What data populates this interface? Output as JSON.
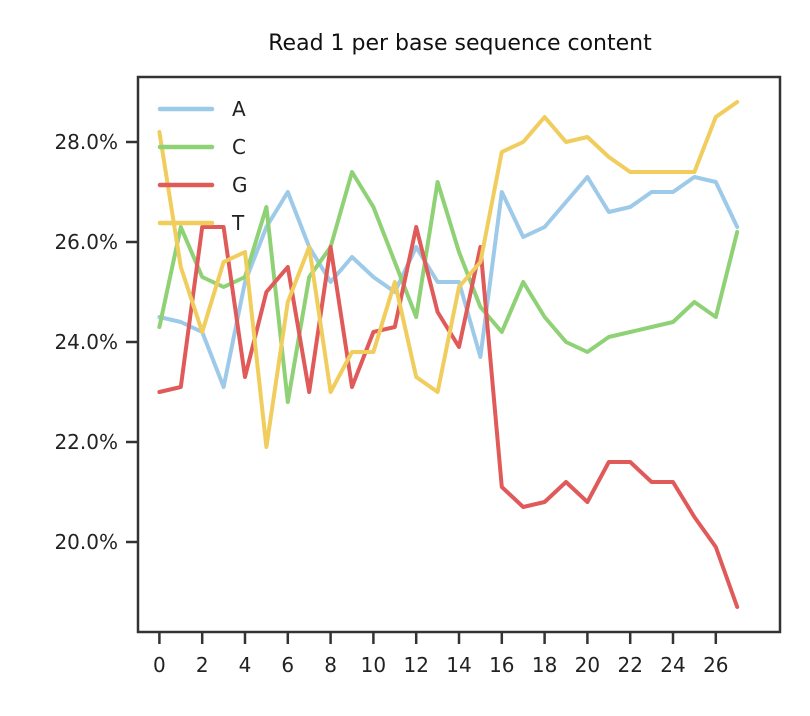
{
  "chart_data": {
    "type": "line",
    "title": "Read 1 per base sequence content",
    "xlabel": "",
    "ylabel": "",
    "x": [
      0,
      1,
      2,
      3,
      4,
      5,
      6,
      7,
      8,
      9,
      10,
      11,
      12,
      13,
      14,
      15,
      16,
      17,
      18,
      19,
      20,
      21,
      22,
      23,
      24,
      25,
      26,
      27
    ],
    "xlim": [
      -1,
      29
    ],
    "ylim": [
      18.2,
      29.3
    ],
    "xticks": [
      0,
      2,
      4,
      6,
      8,
      10,
      12,
      14,
      16,
      18,
      20,
      22,
      24,
      26
    ],
    "xtick_labels": [
      "0",
      "2",
      "4",
      "6",
      "8",
      "10",
      "12",
      "14",
      "16",
      "18",
      "20",
      "22",
      "24",
      "26"
    ],
    "yticks": [
      20,
      22,
      24,
      26,
      28
    ],
    "ytick_labels": [
      "20.0%",
      "22.0%",
      "24.0%",
      "26.0%",
      "28.0%"
    ],
    "grid": false,
    "legend_position": "top-left",
    "series": [
      {
        "name": "A",
        "color": "#9ecae9",
        "values": [
          24.5,
          24.4,
          24.2,
          23.1,
          25.2,
          26.3,
          27.0,
          25.9,
          25.2,
          25.7,
          25.3,
          25.0,
          25.9,
          25.2,
          25.2,
          23.7,
          27.0,
          26.1,
          26.3,
          26.8,
          27.3,
          26.6,
          26.7,
          27.0,
          27.0,
          27.3,
          27.2,
          26.3
        ]
      },
      {
        "name": "C",
        "color": "#8fd175",
        "values": [
          24.3,
          26.3,
          25.3,
          25.1,
          25.3,
          26.7,
          22.8,
          25.3,
          25.9,
          27.4,
          26.7,
          25.6,
          24.5,
          27.2,
          25.8,
          24.7,
          24.2,
          25.2,
          24.5,
          24.0,
          23.8,
          24.1,
          24.2,
          24.3,
          24.4,
          24.8,
          24.5,
          26.2
        ]
      },
      {
        "name": "G",
        "color": "#e05a5a",
        "values": [
          23.0,
          23.1,
          26.3,
          26.3,
          23.3,
          25.0,
          25.5,
          23.0,
          25.9,
          23.1,
          24.2,
          24.3,
          26.3,
          24.6,
          23.9,
          25.9,
          21.1,
          20.7,
          20.8,
          21.2,
          20.8,
          21.6,
          21.6,
          21.2,
          21.2,
          20.5,
          19.9,
          18.7
        ]
      },
      {
        "name": "T",
        "color": "#f0cd5d",
        "values": [
          28.2,
          25.5,
          24.2,
          25.6,
          25.8,
          21.9,
          24.8,
          25.9,
          23.0,
          23.8,
          23.8,
          25.2,
          23.3,
          23.0,
          25.1,
          25.6,
          27.8,
          28.0,
          28.5,
          28.0,
          28.1,
          27.7,
          27.4,
          27.4,
          27.4,
          27.4,
          28.5,
          28.8
        ]
      }
    ]
  }
}
